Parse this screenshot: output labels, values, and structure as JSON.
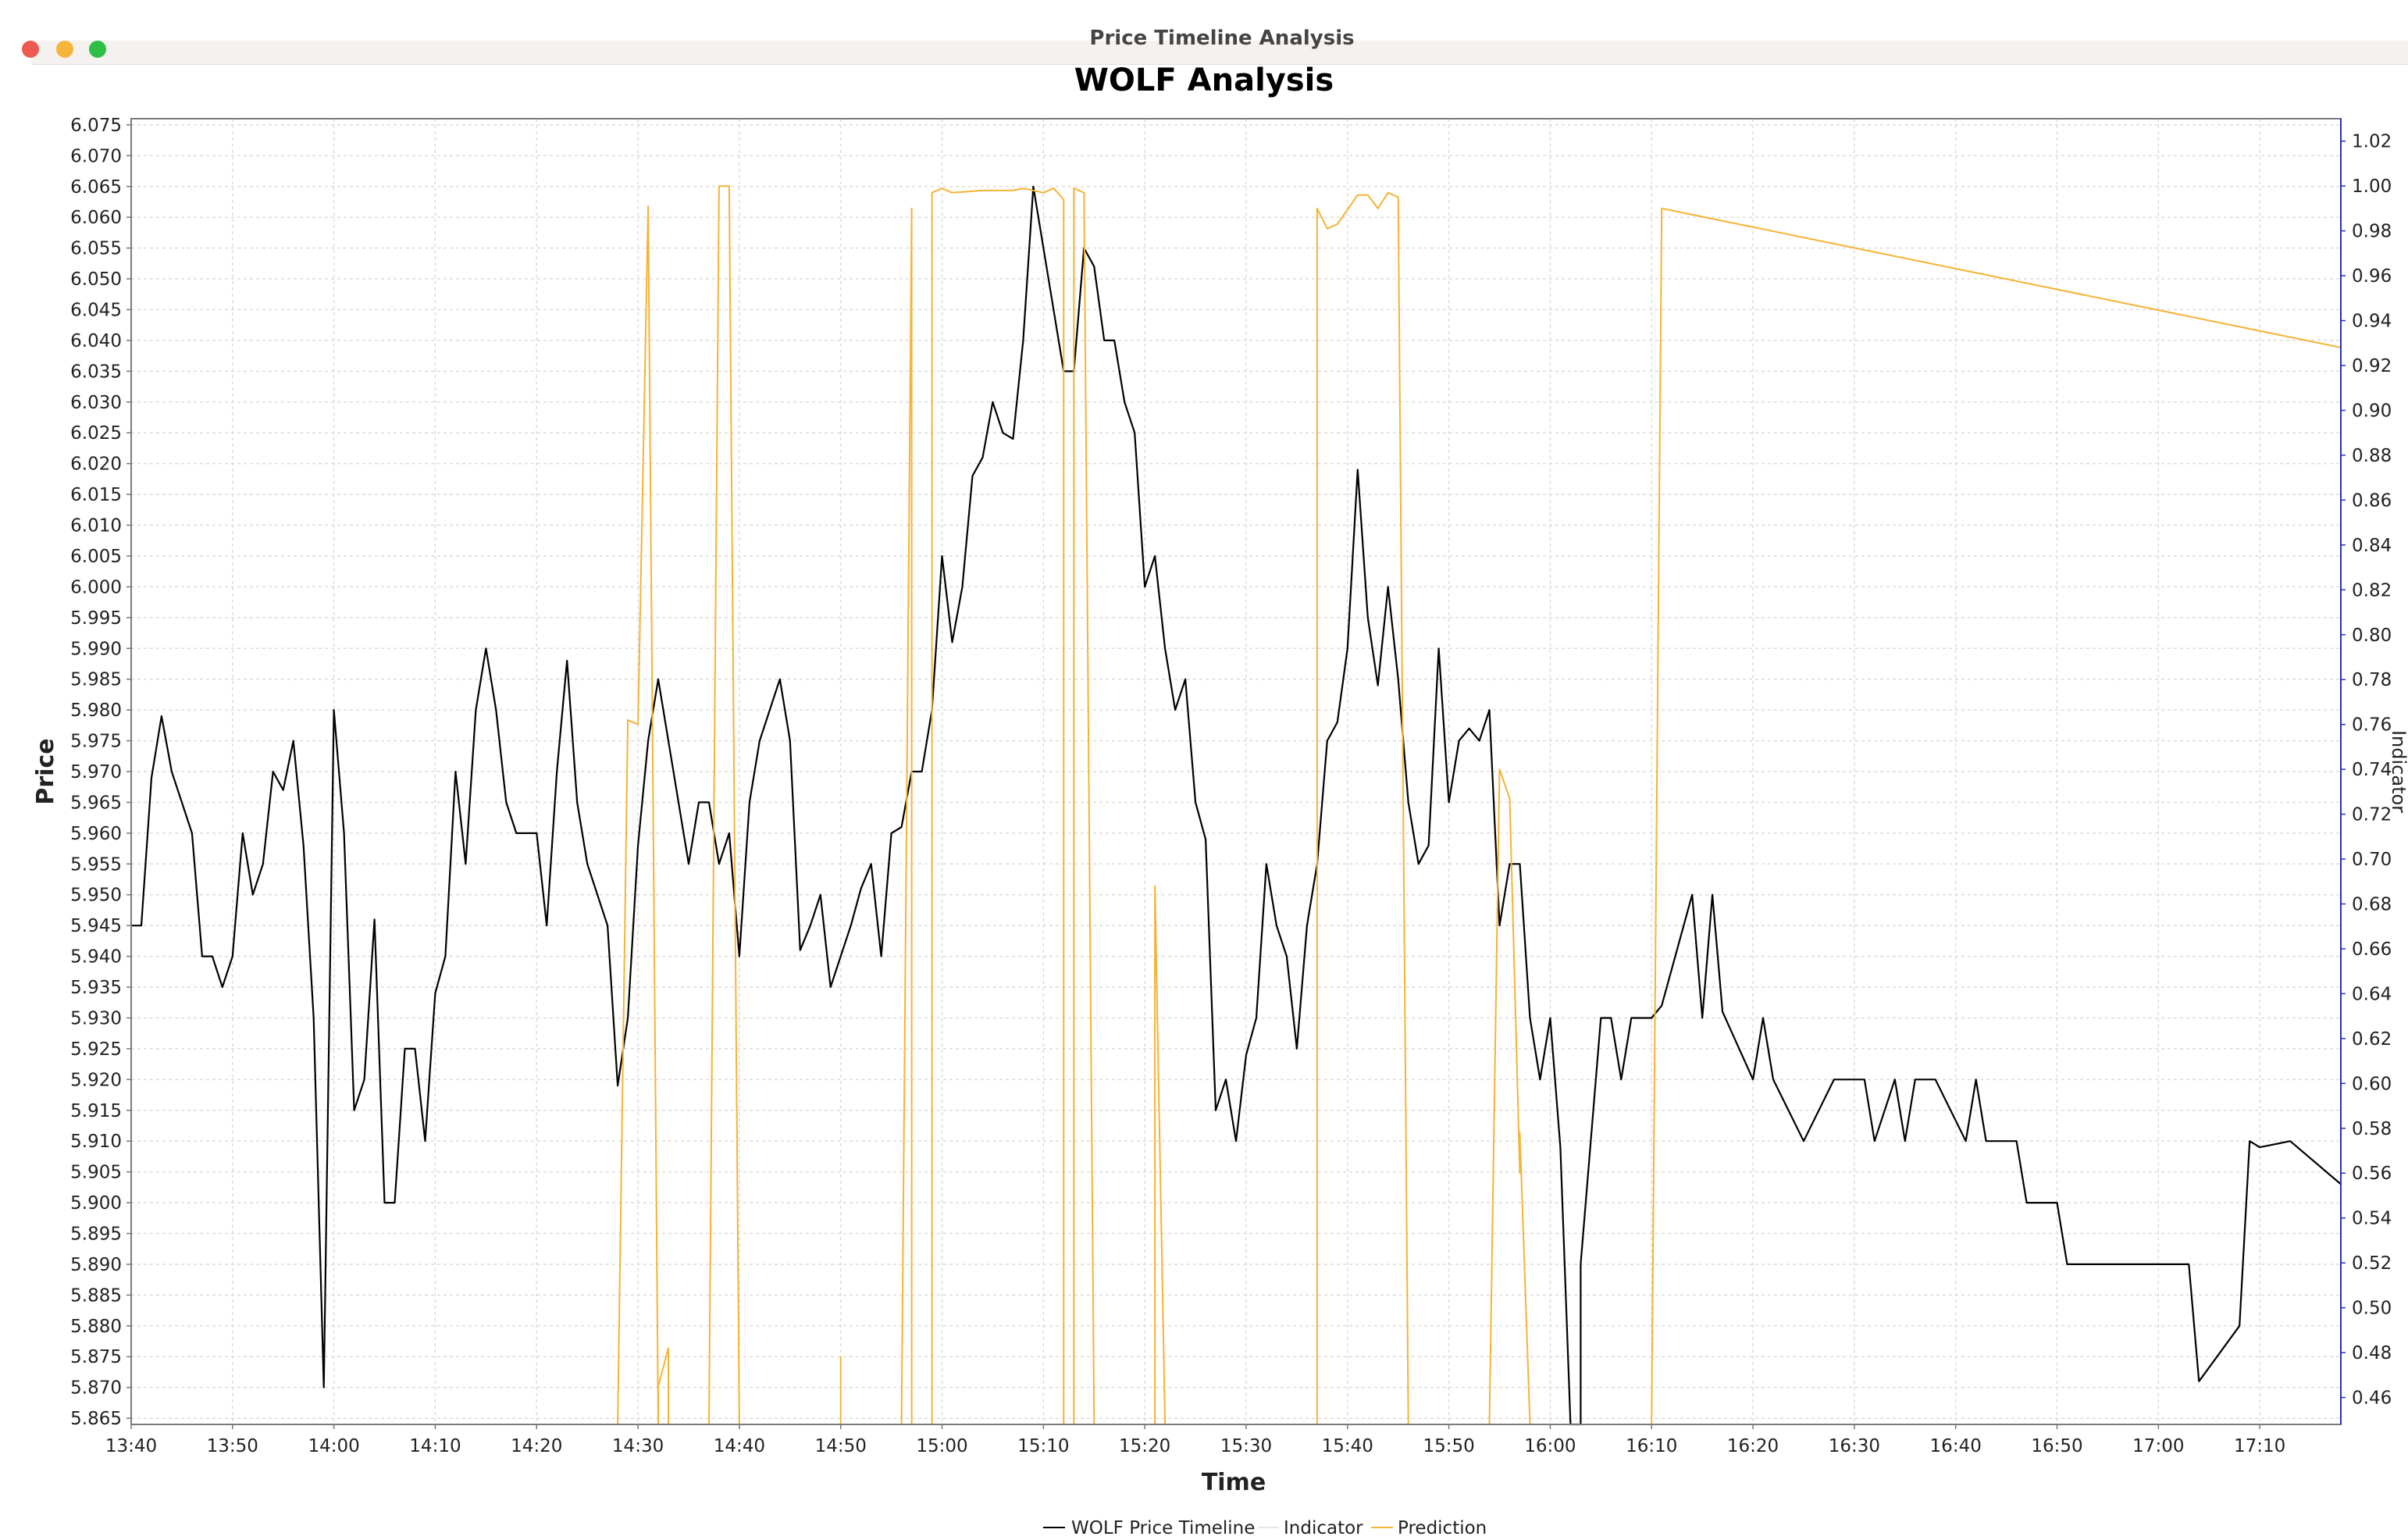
{
  "window": {
    "title": "Price Timeline Analysis",
    "buttons": [
      {
        "name": "close",
        "color": "#ee5a52"
      },
      {
        "name": "minimize",
        "color": "#f6b43b"
      },
      {
        "name": "zoom",
        "color": "#2fbf45"
      }
    ]
  },
  "chart_data": {
    "type": "line",
    "title": "WOLF Analysis",
    "xlabel": "Time",
    "ylabel": "Price",
    "y2label": "Indicator",
    "xlim": [
      "13:40",
      "17:18"
    ],
    "ylim": [
      5.864,
      6.076
    ],
    "y2lim": [
      0.448,
      1.03
    ],
    "x_ticks": [
      "13:40",
      "13:50",
      "14:00",
      "14:10",
      "14:20",
      "14:30",
      "14:40",
      "14:50",
      "15:00",
      "15:10",
      "15:20",
      "15:30",
      "15:40",
      "15:50",
      "16:00",
      "16:10",
      "16:20",
      "16:30",
      "16:40",
      "16:50",
      "17:00",
      "17:10"
    ],
    "y_ticks": [
      "5.865",
      "5.870",
      "5.875",
      "5.880",
      "5.885",
      "5.890",
      "5.895",
      "5.900",
      "5.905",
      "5.910",
      "5.915",
      "5.920",
      "5.925",
      "5.930",
      "5.935",
      "5.940",
      "5.945",
      "5.950",
      "5.955",
      "5.960",
      "5.965",
      "5.970",
      "5.975",
      "5.980",
      "5.985",
      "5.990",
      "5.995",
      "6.000",
      "6.005",
      "6.010",
      "6.015",
      "6.020",
      "6.025",
      "6.030",
      "6.035",
      "6.040",
      "6.045",
      "6.050",
      "6.055",
      "6.060",
      "6.065",
      "6.070",
      "6.075"
    ],
    "y2_ticks": [
      "0.46",
      "0.48",
      "0.50",
      "0.52",
      "0.54",
      "0.56",
      "0.58",
      "0.60",
      "0.62",
      "0.64",
      "0.66",
      "0.68",
      "0.70",
      "0.72",
      "0.74",
      "0.76",
      "0.78",
      "0.80",
      "0.82",
      "0.84",
      "0.86",
      "0.88",
      "0.90",
      "0.92",
      "0.94",
      "0.96",
      "0.98",
      "1.00",
      "1.02"
    ],
    "grid": true,
    "legend_position": "bottom",
    "series": [
      {
        "name": "WOLF Price Timeline",
        "axis": "left",
        "color": "#000000",
        "points": [
          [
            "13:40",
            5.945
          ],
          [
            "13:41",
            5.945
          ],
          [
            "13:42",
            5.969
          ],
          [
            "13:43",
            5.979
          ],
          [
            "13:44",
            5.97
          ],
          [
            "13:46",
            5.96
          ],
          [
            "13:47",
            5.94
          ],
          [
            "13:48",
            5.94
          ],
          [
            "13:49",
            5.935
          ],
          [
            "13:50",
            5.94
          ],
          [
            "13:51",
            5.96
          ],
          [
            "13:52",
            5.95
          ],
          [
            "13:53",
            5.955
          ],
          [
            "13:54",
            5.97
          ],
          [
            "13:55",
            5.967
          ],
          [
            "13:56",
            5.975
          ],
          [
            "13:57",
            5.958
          ],
          [
            "13:58",
            5.93
          ],
          [
            "13:59",
            5.87
          ],
          [
            "14:00",
            5.98
          ],
          [
            "14:01",
            5.96
          ],
          [
            "14:02",
            5.915
          ],
          [
            "14:03",
            5.92
          ],
          [
            "14:04",
            5.946
          ],
          [
            "14:05",
            5.9
          ],
          [
            "14:06",
            5.9
          ],
          [
            "14:07",
            5.925
          ],
          [
            "14:08",
            5.925
          ],
          [
            "14:09",
            5.91
          ],
          [
            "14:10",
            5.934
          ],
          [
            "14:11",
            5.94
          ],
          [
            "14:12",
            5.97
          ],
          [
            "14:13",
            5.955
          ],
          [
            "14:14",
            5.98
          ],
          [
            "14:15",
            5.99
          ],
          [
            "14:16",
            5.98
          ],
          [
            "14:17",
            5.965
          ],
          [
            "14:18",
            5.96
          ],
          [
            "14:20",
            5.96
          ],
          [
            "14:21",
            5.945
          ],
          [
            "14:22",
            5.97
          ],
          [
            "14:23",
            5.988
          ],
          [
            "14:24",
            5.965
          ],
          [
            "14:25",
            5.955
          ],
          [
            "14:27",
            5.945
          ],
          [
            "14:28",
            5.919
          ],
          [
            "14:29",
            5.93
          ],
          [
            "14:30",
            5.958
          ],
          [
            "14:31",
            5.975
          ],
          [
            "14:32",
            5.985
          ],
          [
            "14:33",
            5.975
          ],
          [
            "14:34",
            5.965
          ],
          [
            "14:35",
            5.955
          ],
          [
            "14:36",
            5.965
          ],
          [
            "14:37",
            5.965
          ],
          [
            "14:38",
            5.955
          ],
          [
            "14:39",
            5.96
          ],
          [
            "14:40",
            5.94
          ],
          [
            "14:41",
            5.965
          ],
          [
            "14:42",
            5.975
          ],
          [
            "14:44",
            5.985
          ],
          [
            "14:45",
            5.975
          ],
          [
            "14:46",
            5.941
          ],
          [
            "14:47",
            5.945
          ],
          [
            "14:48",
            5.95
          ],
          [
            "14:49",
            5.935
          ],
          [
            "14:50",
            5.94
          ],
          [
            "14:51",
            5.945
          ],
          [
            "14:52",
            5.951
          ],
          [
            "14:53",
            5.955
          ],
          [
            "14:54",
            5.94
          ],
          [
            "14:55",
            5.96
          ],
          [
            "14:56",
            5.961
          ],
          [
            "14:57",
            5.97
          ],
          [
            "14:58",
            5.97
          ],
          [
            "14:59",
            5.98
          ],
          [
            "15:00",
            6.005
          ],
          [
            "15:01",
            5.991
          ],
          [
            "15:02",
            6.0
          ],
          [
            "15:03",
            6.018
          ],
          [
            "15:04",
            6.021
          ],
          [
            "15:05",
            6.03
          ],
          [
            "15:06",
            6.025
          ],
          [
            "15:07",
            6.024
          ],
          [
            "15:08",
            6.04
          ],
          [
            "15:09",
            6.065
          ],
          [
            "15:12",
            6.035
          ],
          [
            "15:13",
            6.035
          ],
          [
            "15:14",
            6.055
          ],
          [
            "15:15",
            6.052
          ],
          [
            "15:16",
            6.04
          ],
          [
            "15:17",
            6.04
          ],
          [
            "15:18",
            6.03
          ],
          [
            "15:19",
            6.025
          ],
          [
            "15:20",
            6.0
          ],
          [
            "15:21",
            6.005
          ],
          [
            "15:22",
            5.99
          ],
          [
            "15:23",
            5.98
          ],
          [
            "15:24",
            5.985
          ],
          [
            "15:25",
            5.965
          ],
          [
            "15:26",
            5.959
          ],
          [
            "15:27",
            5.915
          ],
          [
            "15:28",
            5.92
          ],
          [
            "15:29",
            5.91
          ],
          [
            "15:30",
            5.924
          ],
          [
            "15:31",
            5.93
          ],
          [
            "15:32",
            5.955
          ],
          [
            "15:33",
            5.945
          ],
          [
            "15:34",
            5.94
          ],
          [
            "15:35",
            5.925
          ],
          [
            "15:36",
            5.945
          ],
          [
            "15:37",
            5.955
          ],
          [
            "15:38",
            5.975
          ],
          [
            "15:39",
            5.978
          ],
          [
            "15:40",
            5.99
          ],
          [
            "15:41",
            6.019
          ],
          [
            "15:42",
            5.995
          ],
          [
            "15:43",
            5.984
          ],
          [
            "15:44",
            6.0
          ],
          [
            "15:45",
            5.985
          ],
          [
            "15:46",
            5.965
          ],
          [
            "15:47",
            5.955
          ],
          [
            "15:48",
            5.958
          ],
          [
            "15:49",
            5.99
          ],
          [
            "15:50",
            5.965
          ],
          [
            "15:51",
            5.975
          ],
          [
            "15:52",
            5.977
          ],
          [
            "15:53",
            5.975
          ],
          [
            "15:54",
            5.98
          ],
          [
            "15:55",
            5.945
          ],
          [
            "15:56",
            5.955
          ],
          [
            "15:57",
            5.955
          ],
          [
            "15:58",
            5.93
          ],
          [
            "15:59",
            5.92
          ],
          [
            "16:00",
            5.93
          ],
          [
            "16:01",
            5.909
          ],
          [
            "16:02",
            5.864
          ],
          [
            "16:03",
            5.864
          ],
          [
            "16:03",
            5.89
          ],
          [
            "16:05",
            5.93
          ],
          [
            "16:06",
            5.93
          ],
          [
            "16:07",
            5.92
          ],
          [
            "16:08",
            5.93
          ],
          [
            "16:10",
            5.93
          ],
          [
            "16:11",
            5.932
          ],
          [
            "16:14",
            5.95
          ],
          [
            "16:15",
            5.93
          ],
          [
            "16:16",
            5.95
          ],
          [
            "16:17",
            5.931
          ],
          [
            "16:20",
            5.92
          ],
          [
            "16:21",
            5.93
          ],
          [
            "16:22",
            5.92
          ],
          [
            "16:25",
            5.91
          ],
          [
            "16:28",
            5.92
          ],
          [
            "16:31",
            5.92
          ],
          [
            "16:32",
            5.91
          ],
          [
            "16:34",
            5.92
          ],
          [
            "16:35",
            5.91
          ],
          [
            "16:36",
            5.92
          ],
          [
            "16:38",
            5.92
          ],
          [
            "16:41",
            5.91
          ],
          [
            "16:42",
            5.92
          ],
          [
            "16:43",
            5.91
          ],
          [
            "16:46",
            5.91
          ],
          [
            "16:47",
            5.9
          ],
          [
            "16:50",
            5.9
          ],
          [
            "16:51",
            5.89
          ],
          [
            "17:03",
            5.89
          ],
          [
            "17:04",
            5.871
          ],
          [
            "17:08",
            5.88
          ],
          [
            "17:09",
            5.91
          ],
          [
            "17:10",
            5.909
          ],
          [
            "17:13",
            5.91
          ],
          [
            "17:18",
            5.903
          ]
        ]
      },
      {
        "name": "Indicator",
        "axis": "right",
        "color": "#d8d8d8",
        "points": []
      },
      {
        "name": "Prediction",
        "axis": "right",
        "color": "#f5b335",
        "points": [
          [
            "14:28",
            0.448
          ],
          [
            "14:29",
            0.762
          ],
          [
            "14:30",
            0.76
          ],
          [
            "14:31",
            0.991
          ],
          [
            "14:32",
            0.448
          ],
          [
            "14:32",
            0.465
          ],
          [
            "14:33",
            0.482
          ],
          [
            "14:33",
            0.448
          ],
          [
            "14:37",
            0.448
          ],
          [
            "14:38",
            1.0
          ],
          [
            "14:39",
            1.0
          ],
          [
            "14:40",
            0.448
          ],
          [
            "14:50",
            0.448
          ],
          [
            "14:50",
            0.478
          ],
          [
            "14:50",
            0.448
          ],
          [
            "14:56",
            0.448
          ],
          [
            "14:57",
            0.99
          ],
          [
            "14:57",
            0.448
          ],
          [
            "14:59",
            0.448
          ],
          [
            "14:59",
            0.997
          ],
          [
            "15:00",
            0.999
          ],
          [
            "15:01",
            0.997
          ],
          [
            "15:04",
            0.998
          ],
          [
            "15:07",
            0.998
          ],
          [
            "15:08",
            0.999
          ],
          [
            "15:10",
            0.997
          ],
          [
            "15:11",
            0.999
          ],
          [
            "15:12",
            0.994
          ],
          [
            "15:12",
            0.448
          ],
          [
            "15:13",
            0.448
          ],
          [
            "15:13",
            0.999
          ],
          [
            "15:14",
            0.997
          ],
          [
            "15:15",
            0.448
          ],
          [
            "15:21",
            0.448
          ],
          [
            "15:21",
            0.688
          ],
          [
            "15:22",
            0.448
          ],
          [
            "15:37",
            0.448
          ],
          [
            "15:37",
            0.99
          ],
          [
            "15:38",
            0.981
          ],
          [
            "15:39",
            0.983
          ],
          [
            "15:41",
            0.996
          ],
          [
            "15:42",
            0.996
          ],
          [
            "15:43",
            0.99
          ],
          [
            "15:44",
            0.997
          ],
          [
            "15:45",
            0.995
          ],
          [
            "15:46",
            0.448
          ],
          [
            "15:54",
            0.448
          ],
          [
            "15:55",
            0.74
          ],
          [
            "15:56",
            0.727
          ],
          [
            "15:57",
            0.56
          ],
          [
            "15:57",
            0.578
          ],
          [
            "15:58",
            0.448
          ],
          [
            "16:10",
            0.448
          ],
          [
            "16:11",
            0.99
          ],
          [
            "17:18",
            0.928
          ]
        ]
      }
    ]
  }
}
